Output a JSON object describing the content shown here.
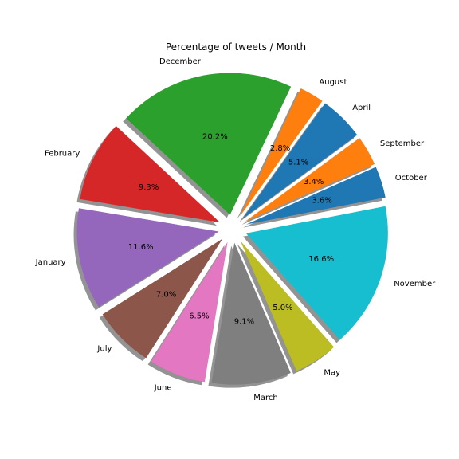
{
  "chart_data": {
    "type": "pie",
    "title": "Percentage of tweets / Month",
    "start_angle_deg": 11,
    "direction": "counterclockwise",
    "shadow": true,
    "explode": 0.1,
    "slices": [
      {
        "label": "October",
        "value": 3.6,
        "pct_label": "3.6%",
        "color": "#1f77b4"
      },
      {
        "label": "September",
        "value": 3.4,
        "pct_label": "3.4%",
        "color": "#ff7f0e"
      },
      {
        "label": "April",
        "value": 5.1,
        "pct_label": "5.1%",
        "color": "#1f77b4"
      },
      {
        "label": "August",
        "value": 2.8,
        "pct_label": "2.8%",
        "color": "#ff7f0e"
      },
      {
        "label": "December",
        "value": 20.2,
        "pct_label": "20.2%",
        "color": "#2ca02c"
      },
      {
        "label": "February",
        "value": 9.3,
        "pct_label": "9.3%",
        "color": "#d62728"
      },
      {
        "label": "January",
        "value": 11.6,
        "pct_label": "11.6%",
        "color": "#9467bd"
      },
      {
        "label": "July",
        "value": 7.0,
        "pct_label": "7.0%",
        "color": "#8c564b"
      },
      {
        "label": "June",
        "value": 6.5,
        "pct_label": "6.5%",
        "color": "#e377c2"
      },
      {
        "label": "March",
        "value": 9.1,
        "pct_label": "9.1%",
        "color": "#7f7f7f"
      },
      {
        "label": "May",
        "value": 5.0,
        "pct_label": "5.0%",
        "color": "#bcbd22"
      },
      {
        "label": "November",
        "value": 16.6,
        "pct_label": "16.6%",
        "color": "#17becf"
      }
    ]
  }
}
